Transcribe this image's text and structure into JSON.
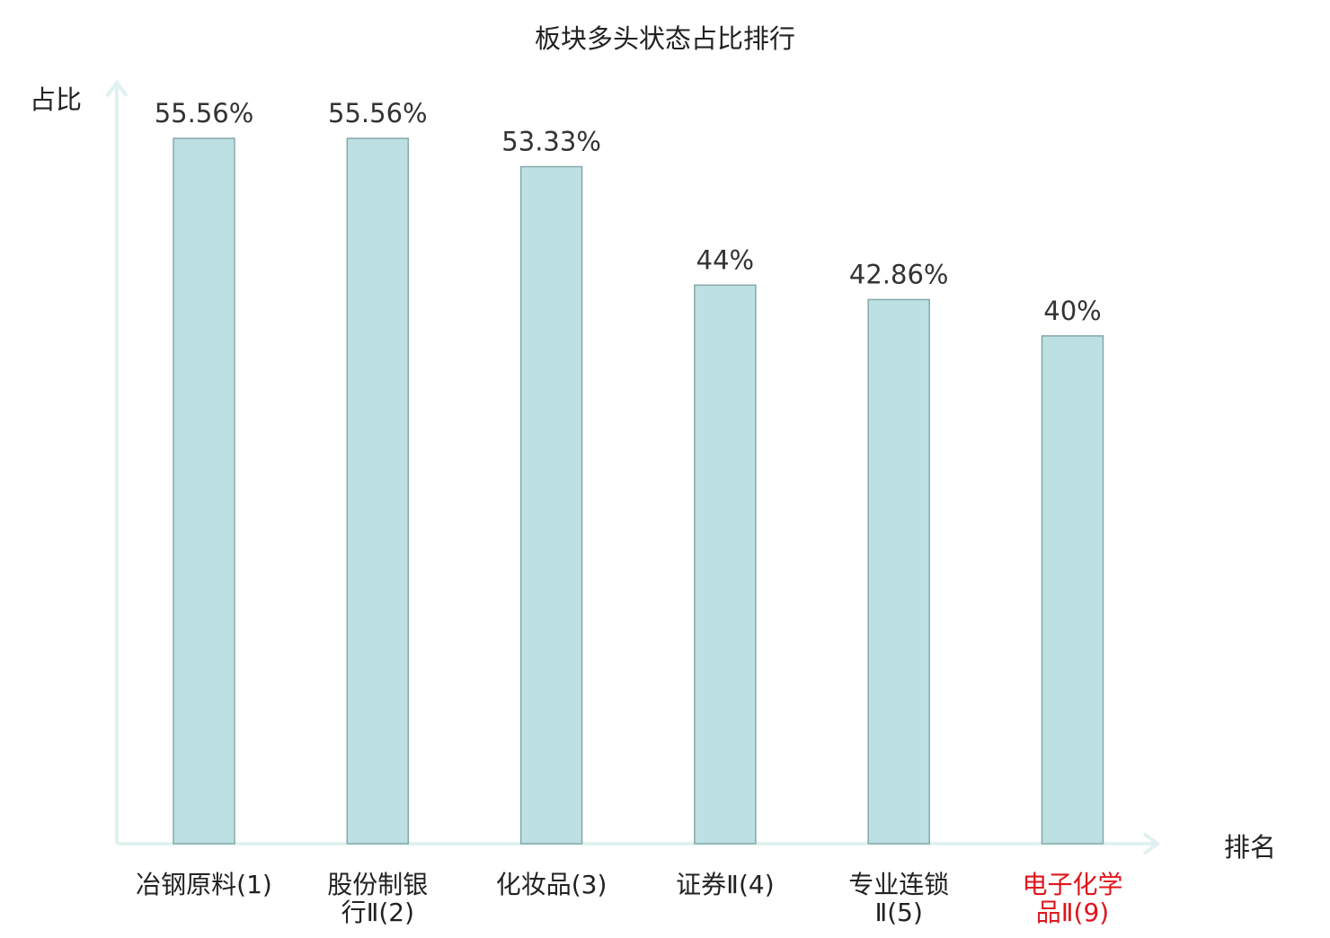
{
  "chart_data": {
    "type": "bar",
    "title": "板块多头状态占比排行",
    "ylabel": "占比",
    "xlabel": "排名",
    "ylim": [
      0,
      60
    ],
    "grid": false,
    "categories": [
      {
        "lines": [
          "冶钢原料(1)"
        ],
        "highlight": false
      },
      {
        "lines": [
          "股份制银",
          "行Ⅱ(2)"
        ],
        "highlight": false
      },
      {
        "lines": [
          "化妆品(3)"
        ],
        "highlight": false
      },
      {
        "lines": [
          "证券Ⅱ(4)"
        ],
        "highlight": false
      },
      {
        "lines": [
          "专业连锁",
          "Ⅱ(5)"
        ],
        "highlight": false
      },
      {
        "lines": [
          "电子化学",
          "品Ⅱ(9)"
        ],
        "highlight": true
      }
    ],
    "values": [
      55.56,
      55.56,
      53.33,
      44,
      42.86,
      40
    ],
    "value_labels": [
      "55.56%",
      "55.56%",
      "53.33%",
      "44%",
      "42.86%",
      "40%"
    ]
  },
  "colors": {
    "bar_fill": "#bde1e3",
    "bar_stroke": "#86a8aa",
    "axis": "#dff2ef",
    "text": "#222222",
    "value_text": "#333333",
    "highlight_text": "#e0161c"
  }
}
